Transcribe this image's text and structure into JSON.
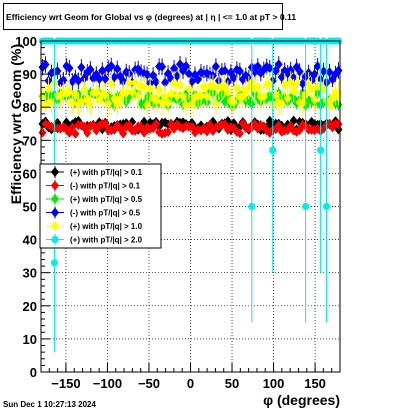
{
  "chart_data": {
    "type": "scatter",
    "title": "Efficiency wrt Geom for Global vs φ (degrees) at |  η  | <= 1.0 at pT > 0.11",
    "xlabel": "φ (degrees)",
    "ylabel": "Efficiency wrt Geom (%)",
    "xlim": [
      -180,
      180
    ],
    "ylim": [
      0,
      100
    ],
    "xticks": [
      -150,
      -100,
      -50,
      0,
      50,
      100,
      150
    ],
    "yticks": [
      0,
      10,
      20,
      30,
      40,
      50,
      60,
      70,
      80,
      90,
      100
    ],
    "grid": true,
    "legend_position": "left-middle",
    "n_bins": 100,
    "series": [
      {
        "name": "(+) with pT/|q| > 0.1",
        "color": "#000000",
        "marker": "diamond",
        "mean": 74.5,
        "spread": 1.5,
        "err": 1.2,
        "seed": 11
      },
      {
        "name": "(-) with pT/|q| > 0.1",
        "color": "#ff0000",
        "marker": "diamond",
        "mean": 73.5,
        "spread": 1.6,
        "err": 1.3,
        "seed": 23
      },
      {
        "name": "(+) with pT/|q| > 0.5",
        "color": "#00ee00",
        "marker": "diamond",
        "mean": 82.5,
        "spread": 2.0,
        "err": 1.8,
        "seed": 37
      },
      {
        "name": "(-) with pT/|q| > 0.5",
        "color": "#0000ff",
        "marker": "diamond",
        "mean": 90.0,
        "spread": 3.0,
        "err": 2.5,
        "seed": 41
      },
      {
        "name": "(+) with pT/|q| > 1.0",
        "color": "#ffff00",
        "marker": "diamond",
        "mean": 84.0,
        "spread": 3.5,
        "err": 3.5,
        "seed": 53
      },
      {
        "name": "(+) with pT/|q| > 2.0",
        "color": "#00eeee",
        "marker": "circle",
        "mean": 100,
        "spread": 0,
        "err": 0,
        "seed": 67,
        "outliers": [
          {
            "phi": -165,
            "value": 33,
            "lo": 6,
            "hi": 100
          },
          {
            "phi": 72,
            "value": 50,
            "lo": 15,
            "hi": 100
          },
          {
            "phi": 98,
            "value": 67,
            "lo": 30,
            "hi": 100
          },
          {
            "phi": 138,
            "value": 50,
            "lo": 15,
            "hi": 100
          },
          {
            "phi": 155,
            "value": 67,
            "lo": 30,
            "hi": 100
          },
          {
            "phi": 163,
            "value": 50,
            "lo": 15,
            "hi": 100
          }
        ]
      }
    ]
  },
  "footer": "Sun Dec  1 10:27:13 2024"
}
